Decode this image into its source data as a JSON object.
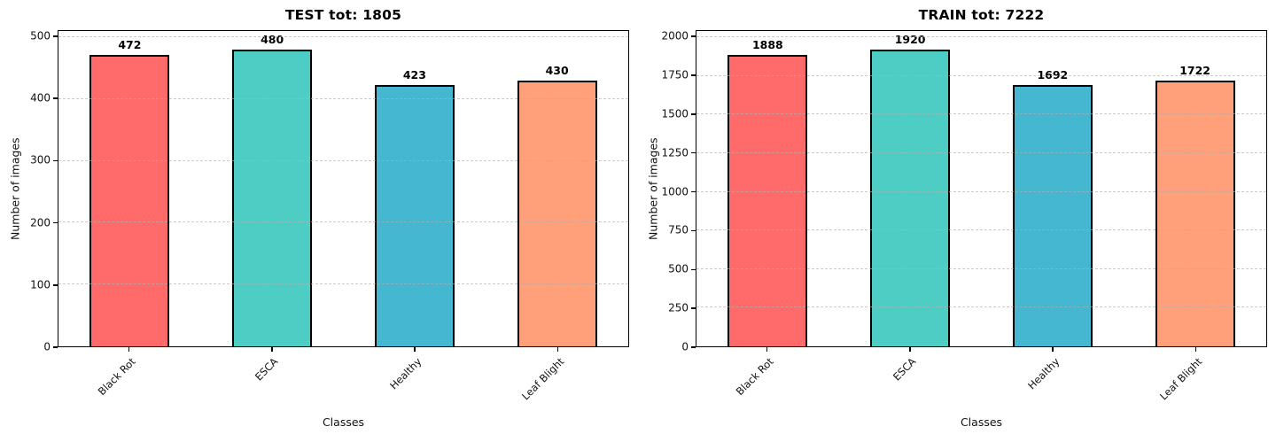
{
  "figure": {
    "background": "#ffffff",
    "text_color": "#000000",
    "grid_style": "dashed horizontal, light gray, drawn over bars",
    "bar_edge_color": "#000000"
  },
  "chart_data": [
    {
      "type": "bar",
      "title": "TEST tot: 1805",
      "total": 1805,
      "xlabel": "Classes",
      "ylabel": "Number of images",
      "categories": [
        "Black Rot",
        "ESCA",
        "Healthy",
        "Leaf Blight"
      ],
      "values": [
        472,
        480,
        423,
        430
      ],
      "bar_colors": [
        "#FF6B6B",
        "#4ECDC4",
        "#45B7D1",
        "#FFA07A"
      ],
      "yticks": [
        0,
        100,
        200,
        300,
        400,
        500
      ],
      "ylim": [
        0,
        510
      ],
      "grid": true,
      "legend": "none",
      "xtick_rotation": 45
    },
    {
      "type": "bar",
      "title": "TRAIN tot: 7222",
      "total": 7222,
      "xlabel": "Classes",
      "ylabel": "Number of images",
      "categories": [
        "Black Rot",
        "ESCA",
        "Healthy",
        "Leaf Blight"
      ],
      "values": [
        1888,
        1920,
        1692,
        1722
      ],
      "bar_colors": [
        "#FF6B6B",
        "#4ECDC4",
        "#45B7D1",
        "#FFA07A"
      ],
      "yticks": [
        0,
        250,
        500,
        750,
        1000,
        1250,
        1500,
        1750,
        2000
      ],
      "ylim": [
        0,
        2040
      ],
      "grid": true,
      "legend": "none",
      "xtick_rotation": 45
    }
  ]
}
